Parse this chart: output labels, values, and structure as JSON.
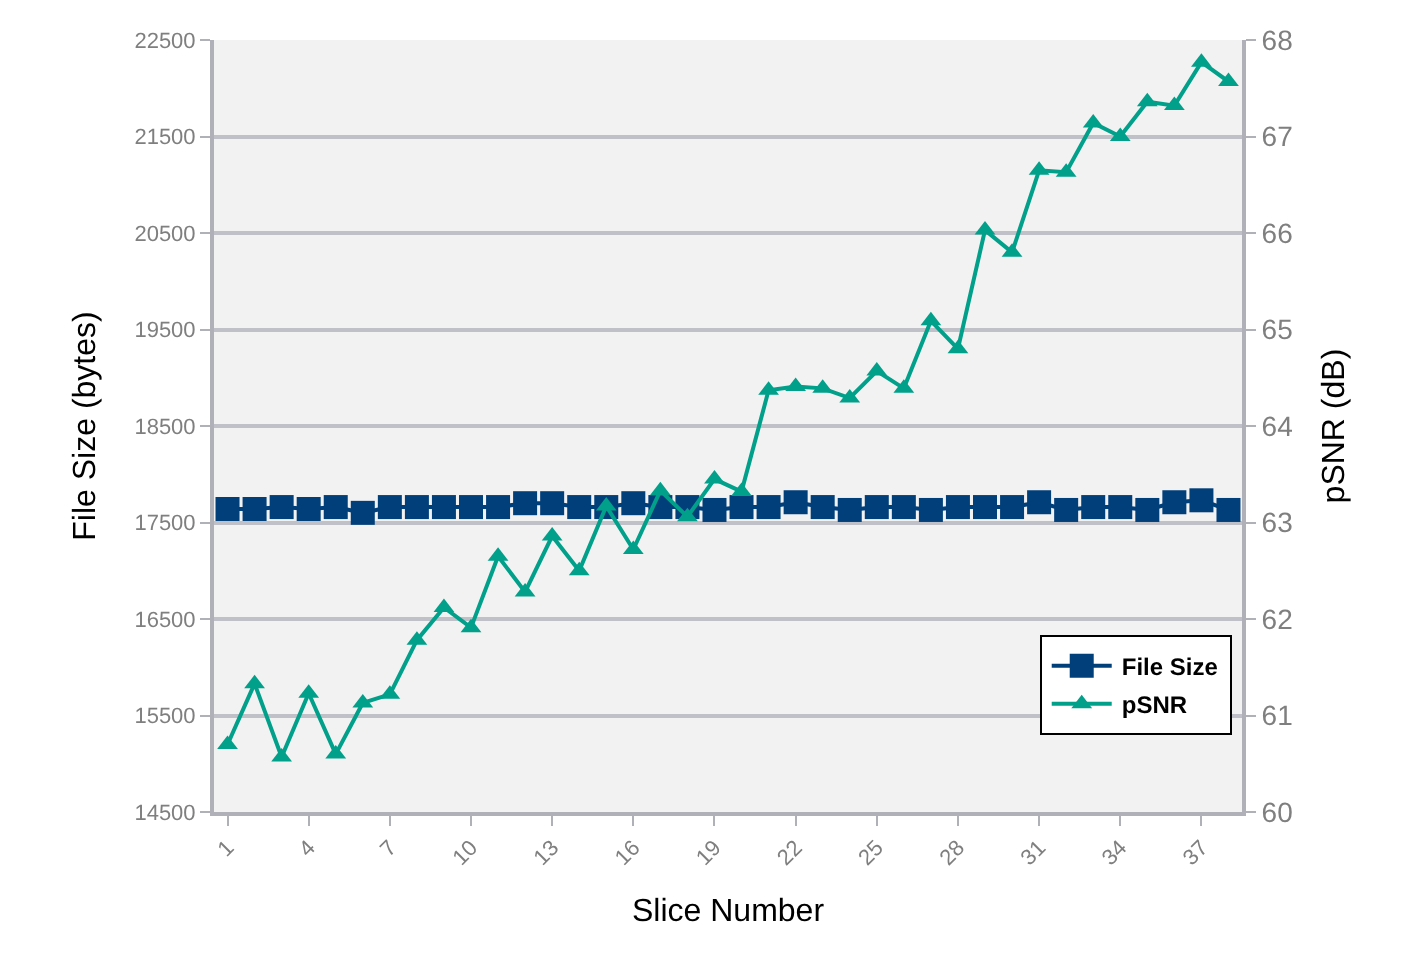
{
  "chart_data": {
    "type": "line",
    "categories": [
      "1",
      null,
      null,
      "4",
      null,
      null,
      "7",
      null,
      null,
      "10",
      null,
      null,
      "13",
      null,
      null,
      "16",
      null,
      null,
      "19",
      null,
      null,
      "22",
      null,
      null,
      "25",
      null,
      null,
      "28",
      null,
      null,
      "31",
      null,
      null,
      "34",
      null,
      null,
      "37",
      null
    ],
    "series": [
      {
        "name": "File Size",
        "color": "#003f7a",
        "marker": "square",
        "values": [
          17640,
          17640,
          17660,
          17640,
          17660,
          17600,
          17660,
          17660,
          17660,
          17660,
          17660,
          17700,
          17700,
          17660,
          17660,
          17700,
          17660,
          17660,
          17630,
          17660,
          17660,
          17710,
          17660,
          17630,
          17660,
          17660,
          17630,
          17660,
          17660,
          17660,
          17710,
          17630,
          17660,
          17660,
          17630,
          17710,
          17730,
          17630
        ]
      },
      {
        "name": "pSNR",
        "color": "#00a08a",
        "marker": "triangle",
        "axis": "y2",
        "values": [
          60.7,
          61.33,
          60.57,
          61.23,
          60.6,
          61.13,
          61.22,
          61.78,
          62.12,
          61.91,
          62.65,
          62.28,
          62.86,
          62.5,
          63.17,
          62.72,
          63.33,
          63.06,
          63.45,
          63.32,
          64.37,
          64.41,
          64.39,
          64.29,
          64.57,
          64.39,
          65.09,
          64.8,
          66.03,
          65.8,
          66.65,
          66.63,
          67.14,
          67.0,
          67.36,
          67.32,
          67.77,
          67.57
        ]
      }
    ],
    "xlabel": "Slice Number",
    "ylabel": "File Size (bytes)",
    "y2label": "pSNR (dB)",
    "ylim": [
      14500,
      22500
    ],
    "yticks": [
      14500,
      15500,
      16500,
      17500,
      18500,
      19500,
      20500,
      21500,
      22500
    ],
    "y2lim": [
      60,
      68
    ],
    "y2ticks": [
      60,
      61,
      62,
      63,
      64,
      65,
      66,
      67,
      68
    ],
    "grid": "y",
    "legend": "bottom right",
    "line_style": "solid"
  }
}
